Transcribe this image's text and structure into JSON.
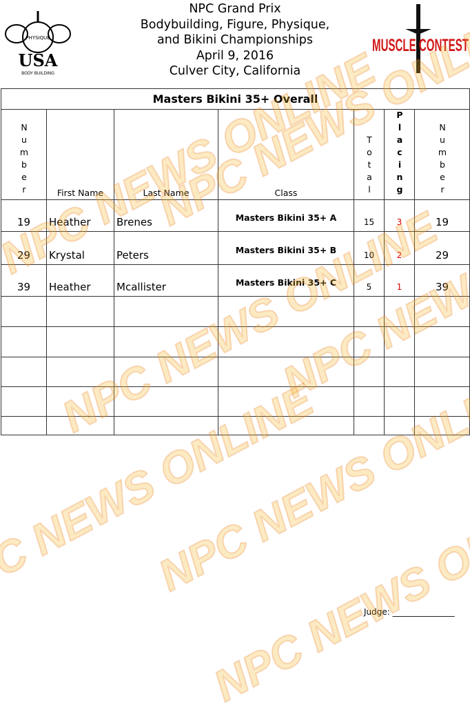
{
  "header": {
    "lines": [
      "NPC Grand Prix",
      "Bodybuilding, Figure, Physique,",
      "and Bikini Championships",
      "April 9, 2016",
      "Culver City, California"
    ]
  },
  "logos": {
    "left": "NATIONAL PHYSIQUE COMMITTEE USA BODY BUILDING",
    "right": "MUSCLE CONTEST"
  },
  "watermark": "NPC NEWS ONLINE",
  "table": {
    "title": "Masters Bikini 35+ Overall",
    "headers": {
      "number": "Number",
      "first_name": "First Name",
      "last_name": "Last Name",
      "class": "Class",
      "total": "Total",
      "placing": "Placing",
      "number2": "Number"
    },
    "rows": [
      {
        "number": "19",
        "first": "Heather",
        "last": "Brenes",
        "class": "Masters Bikini 35+ A",
        "total": "15",
        "placing": "3",
        "number2": "19"
      },
      {
        "number": "29",
        "first": "Krystal",
        "last": "Peters",
        "class": "Masters Bikini 35+ B",
        "total": "10",
        "placing": "2",
        "number2": "29"
      },
      {
        "number": "39",
        "first": "Heather",
        "last": "Mcallister",
        "class": "Masters Bikini 35+ C",
        "total": "5",
        "placing": "1",
        "number2": "39"
      }
    ],
    "empty_rows": 5
  },
  "footer": {
    "judge": "Judge: _______________"
  },
  "colors": {
    "placing": "#dd0000",
    "watermark": "#f5b428"
  }
}
